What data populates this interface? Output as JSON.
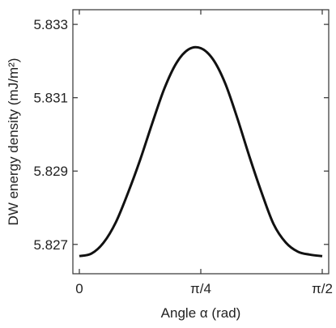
{
  "chart_data": {
    "type": "line",
    "title": "",
    "xlabel": "Angle α (rad)",
    "ylabel": "DW energy density (mJ/m²)",
    "xlim": [
      0,
      1.5708
    ],
    "ylim": [
      5.8262,
      5.8334
    ],
    "x_ticks": [
      {
        "value": 0,
        "label": "0"
      },
      {
        "value": 0.7854,
        "label": "π/4"
      },
      {
        "value": 1.5708,
        "label": "π/2"
      }
    ],
    "y_ticks": [
      {
        "value": 5.827,
        "label": "5.827"
      },
      {
        "value": 5.829,
        "label": "5.829"
      },
      {
        "value": 5.831,
        "label": "5.831"
      },
      {
        "value": 5.833,
        "label": "5.833"
      }
    ],
    "grid": false,
    "legend": "none",
    "series": [
      {
        "color": "#111111",
        "x": [
          0.0,
          0.0785,
          0.1571,
          0.2356,
          0.3142,
          0.3927,
          0.4712,
          0.5498,
          0.6283,
          0.7069,
          0.7854,
          0.8639,
          0.9425,
          1.021,
          1.0996,
          1.1781,
          1.2566,
          1.3352,
          1.4137,
          1.4923,
          1.5708
        ],
        "y": [
          5.82668,
          5.82675,
          5.82705,
          5.8276,
          5.8284,
          5.8293,
          5.8303,
          5.83125,
          5.83195,
          5.83232,
          5.83235,
          5.83205,
          5.8314,
          5.83045,
          5.8294,
          5.82842,
          5.82755,
          5.82705,
          5.8268,
          5.82672,
          5.82668
        ]
      }
    ]
  }
}
